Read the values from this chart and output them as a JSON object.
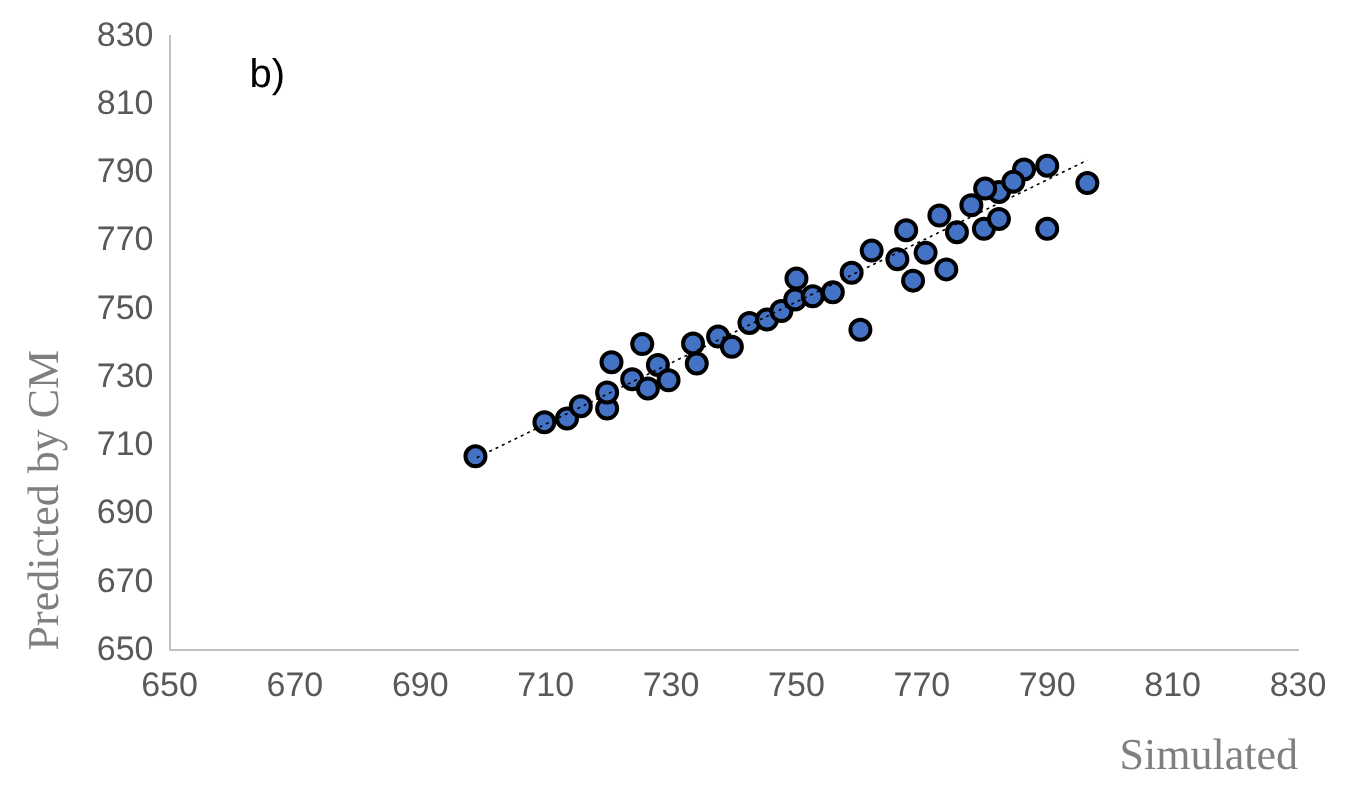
{
  "chart_data": {
    "type": "scatter",
    "xlabel": "Simulated",
    "ylabel": "Predicted by CM",
    "annotations": [
      "b)"
    ],
    "xlim": [
      650,
      830
    ],
    "xticks": [
      650,
      670,
      690,
      710,
      730,
      750,
      770,
      790,
      810,
      830
    ],
    "ylim": [
      650,
      830
    ],
    "yticks": [
      650,
      670,
      690,
      710,
      730,
      750,
      770,
      790,
      810,
      830
    ],
    "grid": false,
    "legend": false,
    "marker": "circle",
    "series": [
      {
        "color": "#4472c4",
        "x": [
          698.8,
          709.8,
          713.4,
          715.6,
          719.8,
          719.8,
          720.5,
          725.4,
          723.8,
          726.3,
          727.9,
          729.6,
          733.5,
          734.1,
          737.5,
          739.7,
          742.5,
          745.3,
          747.6,
          749.8,
          752.6,
          755.8,
          760.2,
          750,
          790,
          796.4,
          790,
          786.3,
          782.3,
          784.6,
          779.9,
          777.9,
          775.6,
          773.9,
          772.8,
          770.6,
          767.5,
          768.6,
          766.1,
          762,
          758.8,
          782.3,
          780.1
        ],
        "values": [
          706.9,
          716.9,
          718,
          721.6,
          720.9,
          725.6,
          734.5,
          739.8,
          729.5,
          726.8,
          733.7,
          729.2,
          740,
          734.1,
          742,
          739,
          746,
          747,
          749.5,
          752.9,
          753.8,
          755,
          744,
          759,
          792.1,
          787,
          773.6,
          791,
          784.4,
          787.4,
          773.6,
          780.5,
          772.6,
          761.7,
          777.5,
          766.6,
          773.2,
          758.4,
          764.7,
          767.2,
          760.7,
          776.5,
          785.4
        ]
      },
      {
        "type": "line",
        "color": "#000000",
        "line_style": "dotted",
        "marker": "none",
        "x": [
          699,
          796.4
        ],
        "values": [
          706.5,
          793.7
        ]
      }
    ]
  }
}
